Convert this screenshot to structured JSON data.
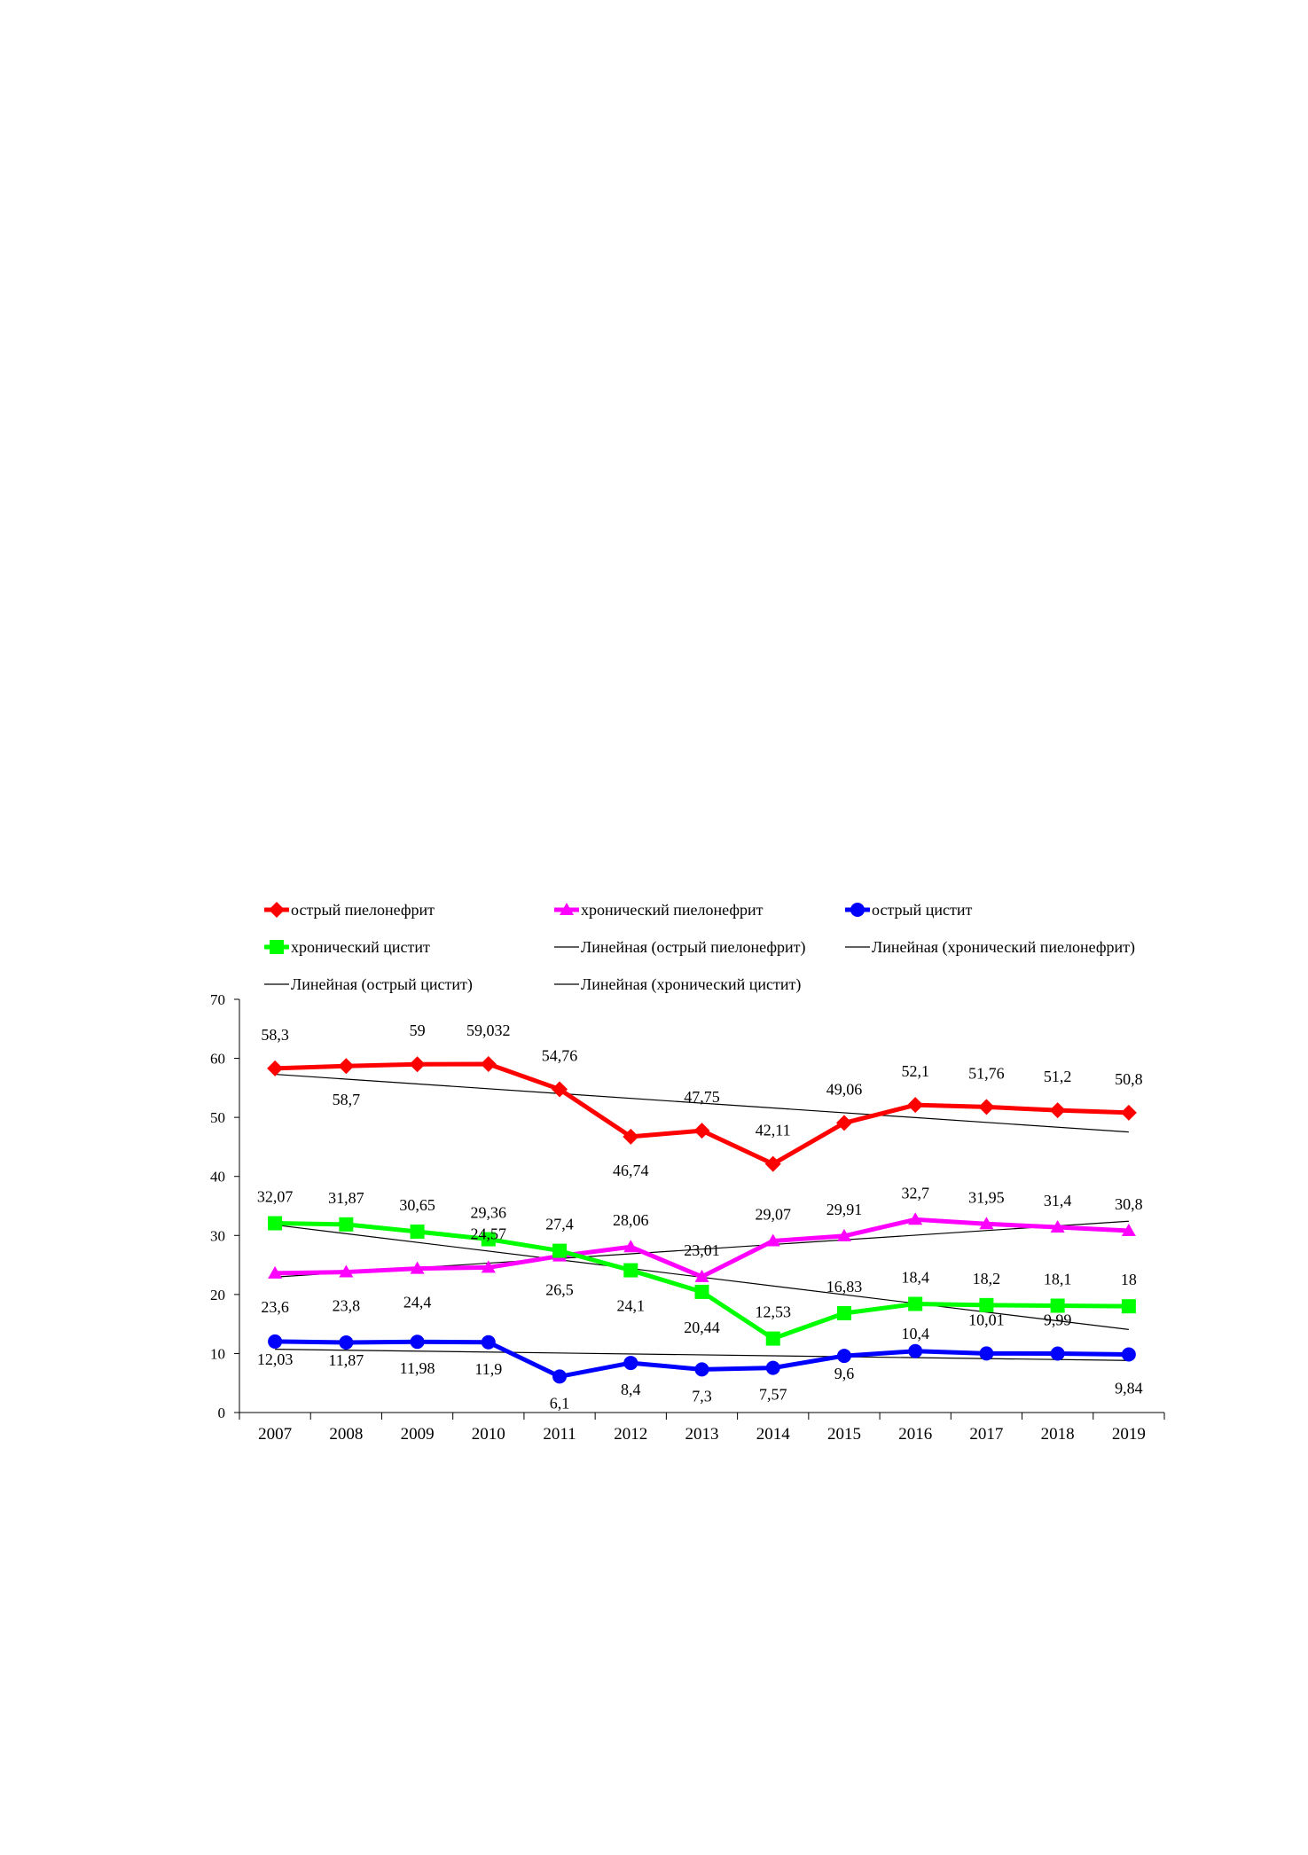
{
  "chart_data": {
    "type": "line",
    "title": "",
    "xlabel": "",
    "ylabel": "",
    "x": [
      "2007",
      "2008",
      "2009",
      "2010",
      "2011",
      "2012",
      "2013",
      "2014",
      "2015",
      "2016",
      "2017",
      "2018",
      "2019"
    ],
    "ylim": [
      0,
      70
    ],
    "yticks": [
      "0",
      "10",
      "20",
      "30",
      "40",
      "50",
      "60",
      "70"
    ],
    "legend_position": "top",
    "grid": false,
    "series": [
      {
        "name": "острый пиелонефрит",
        "color": "#ff0000",
        "marker": "diamond",
        "values": [
          58.3,
          58.7,
          59,
          59.032,
          54.76,
          46.74,
          47.75,
          42.11,
          49.06,
          52.1,
          51.76,
          51.2,
          50.8
        ],
        "labels": [
          "58,3",
          "58,7",
          "59",
          "59,032",
          "54,76",
          "46,74",
          "47,75",
          "42,11",
          "49,06",
          "52,1",
          "51,76",
          "51,2",
          "50,8"
        ]
      },
      {
        "name": "хронический пиелонефрит",
        "color": "#ff00ff",
        "marker": "triangle",
        "values": [
          23.6,
          23.8,
          24.4,
          24.57,
          26.5,
          28.06,
          23.01,
          29.07,
          29.91,
          32.7,
          31.95,
          31.4,
          30.8
        ],
        "labels": [
          "23,6",
          "23,8",
          "24,4",
          "24,57",
          "26,5",
          "28,06",
          "23,01",
          "29,07",
          "29,91",
          "32,7",
          "31,95",
          "31,4",
          "30,8"
        ]
      },
      {
        "name": "острый цистит",
        "color": "#0000ff",
        "marker": "circle",
        "values": [
          12.03,
          11.87,
          11.98,
          11.9,
          6.1,
          8.4,
          7.3,
          7.57,
          9.6,
          10.4,
          10.01,
          9.99,
          9.84
        ],
        "labels": [
          "12,03",
          "11,87",
          "11,98",
          "11,9",
          "6,1",
          "8,4",
          "7,3",
          "7,57",
          "9,6",
          "10,4",
          "10,01",
          "9,99",
          "9,84"
        ]
      },
      {
        "name": "хронический цистит",
        "color": "#00ff00",
        "marker": "square",
        "values": [
          32.07,
          31.87,
          30.65,
          29.36,
          27.4,
          24.1,
          20.44,
          12.53,
          16.83,
          18.4,
          18.2,
          18.1,
          18
        ],
        "labels": [
          "32,07",
          "31,87",
          "30,65",
          "29,36",
          "27,4",
          "24,1",
          "20,44",
          "12,53",
          "16,83",
          "18,4",
          "18,2",
          "18,1",
          "18"
        ]
      }
    ],
    "trendlines": [
      {
        "name": "Линейная (острый пиелонефрит)",
        "of": 0,
        "color": "#000000"
      },
      {
        "name": "Линейная (хронический пиелонефрит)",
        "of": 1,
        "color": "#000000"
      },
      {
        "name": "Линейная (острый цистит)",
        "of": 2,
        "color": "#000000"
      },
      {
        "name": "Линейная (хронический цистит)",
        "of": 3,
        "color": "#000000"
      }
    ]
  }
}
